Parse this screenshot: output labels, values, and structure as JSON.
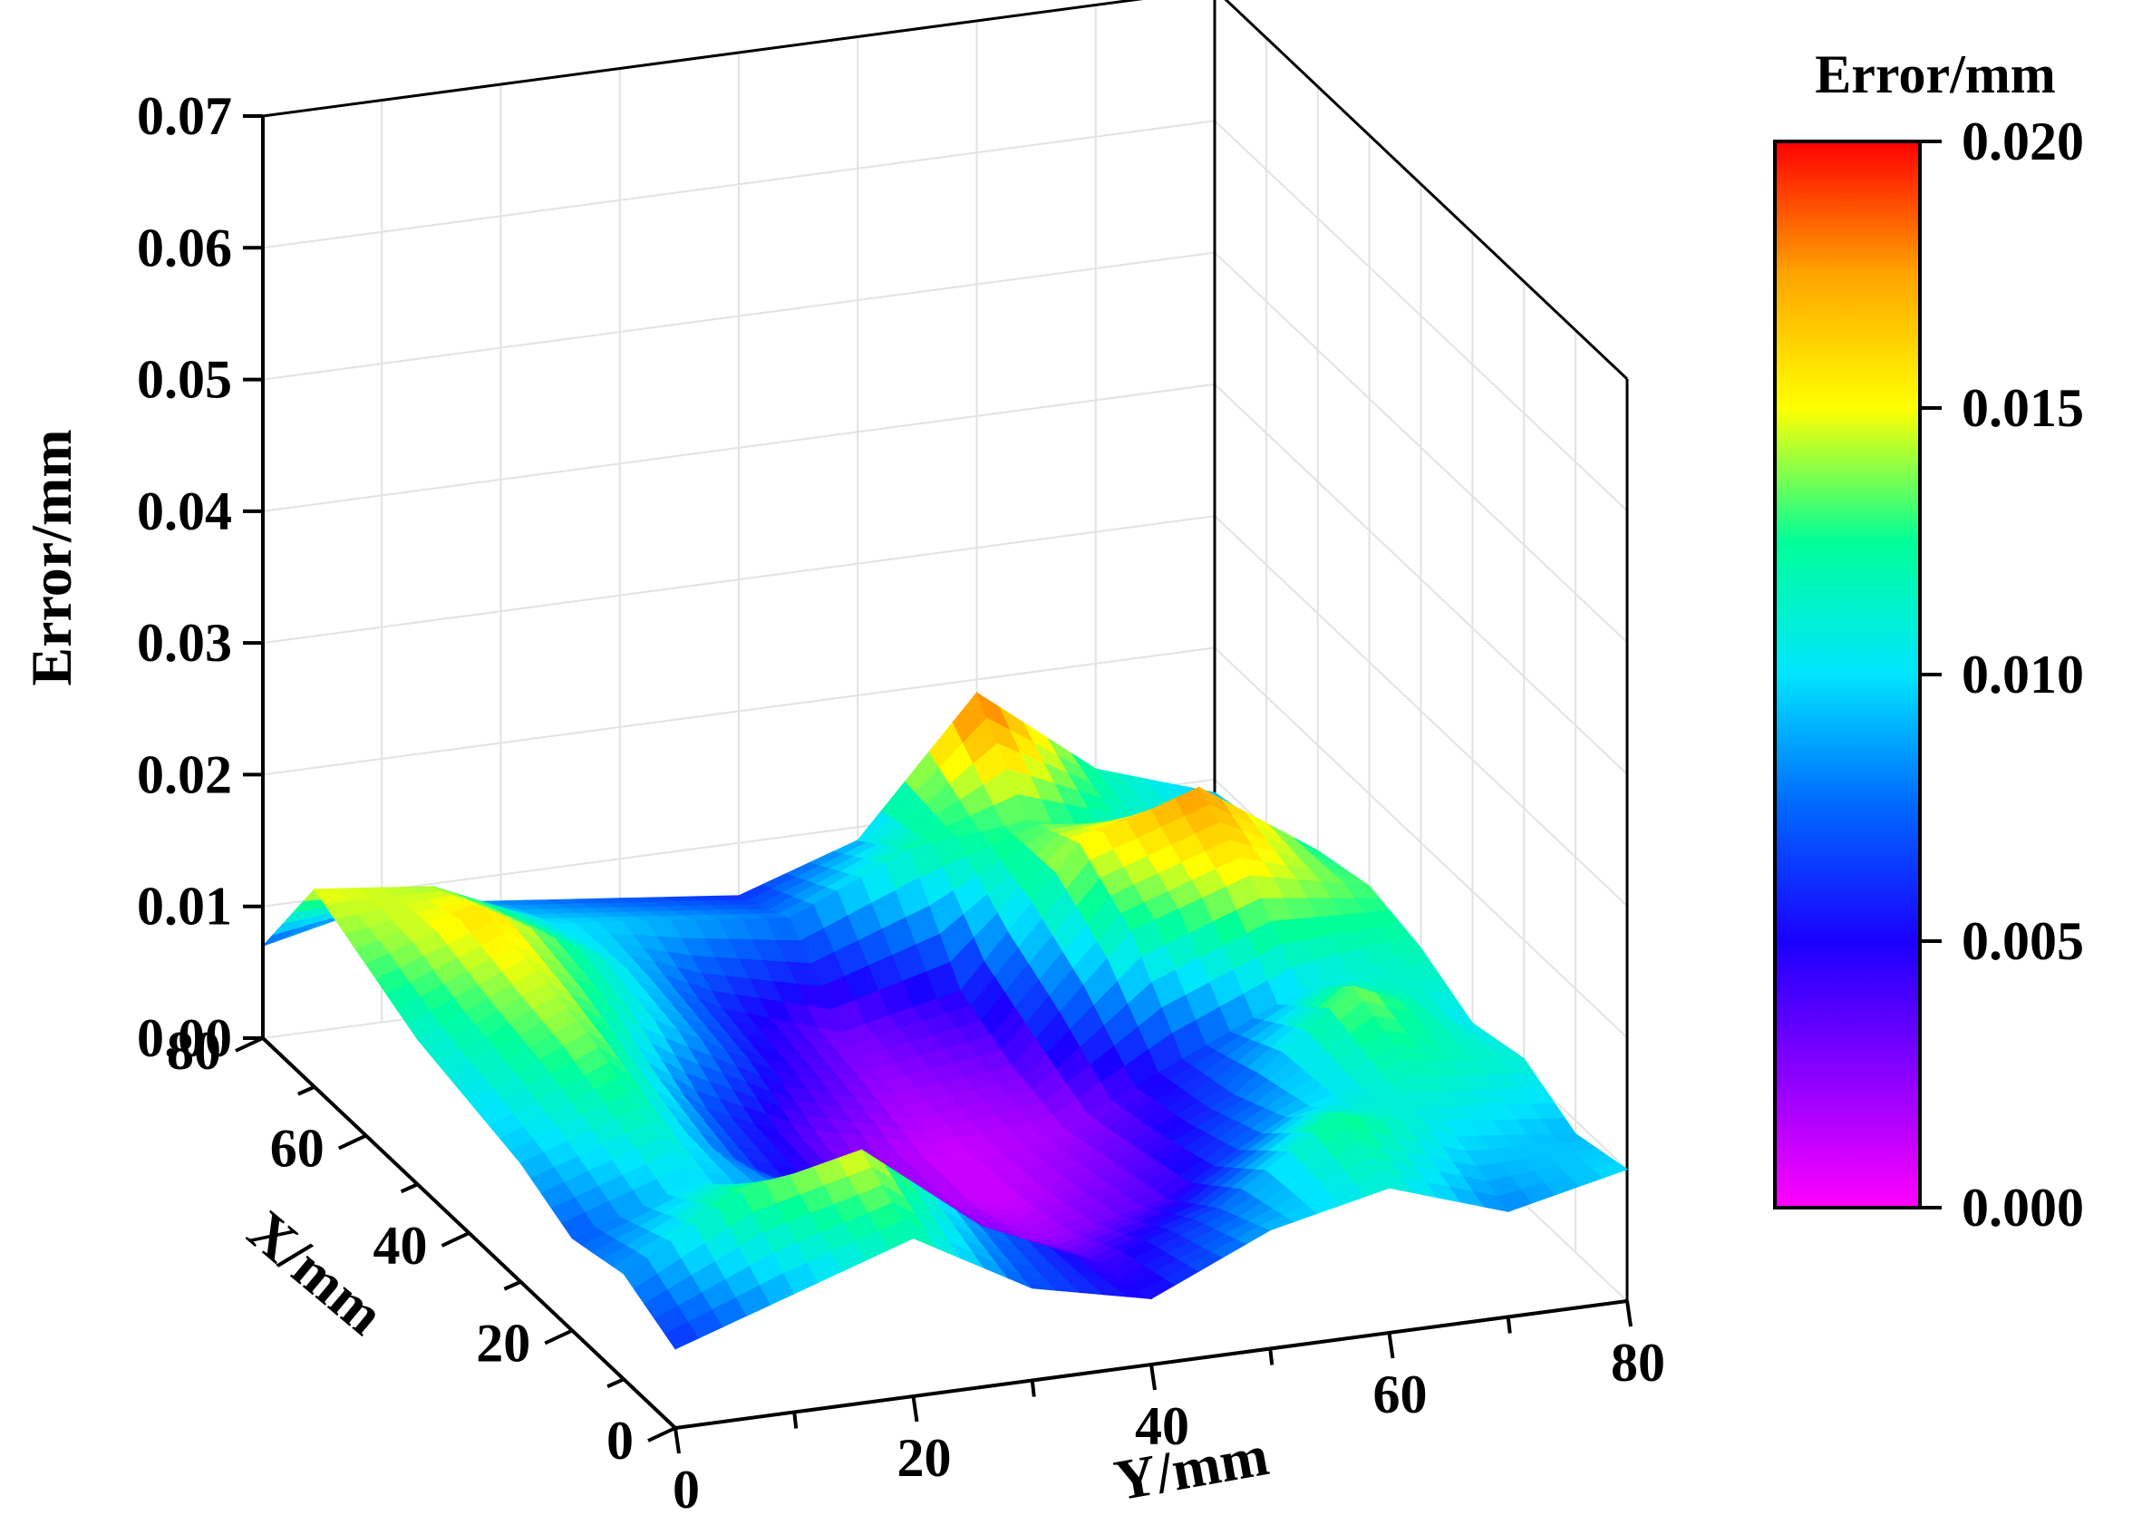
{
  "chart_data": {
    "type": "surface3d",
    "title": "",
    "zlabel": "Error/mm",
    "xlabel": "X/mm",
    "ylabel": "Y/mm",
    "xlim": [
      0,
      80
    ],
    "ylim": [
      0,
      80
    ],
    "zlim": [
      0,
      0.07
    ],
    "x_ticks": [
      "0",
      "20",
      "40",
      "60",
      "80"
    ],
    "y_ticks": [
      "0",
      "20",
      "40",
      "60",
      "80"
    ],
    "z_ticks": [
      "0.00",
      "0.01",
      "0.02",
      "0.03",
      "0.04",
      "0.05",
      "0.06",
      "0.07"
    ],
    "grid": true,
    "colorbar": {
      "title": "Error/mm",
      "range": [
        0,
        0.02
      ],
      "ticks": [
        "0.000",
        "0.005",
        "0.010",
        "0.015",
        "0.020"
      ],
      "colormap": [
        "#ff00ff",
        "#8a00ff",
        "#1a00ff",
        "#0066ff",
        "#00e5ff",
        "#00ff99",
        "#ffff00",
        "#ffa500",
        "#ff0000"
      ],
      "position": "right"
    },
    "surface_grid": {
      "x": [
        0,
        10,
        20,
        30,
        40,
        50,
        60,
        70,
        80
      ],
      "y": [
        0,
        10,
        20,
        30,
        40,
        50,
        60,
        70,
        80
      ],
      "z_rows_by_x": [
        [
          0.006,
          0.009,
          0.012,
          0.007,
          0.005,
          0.009,
          0.011,
          0.008,
          0.01
        ],
        [
          0.008,
          0.013,
          0.015,
          0.008,
          0.004,
          0.007,
          0.013,
          0.01,
          0.009
        ],
        [
          0.007,
          0.01,
          0.008,
          0.004,
          0.002,
          0.004,
          0.009,
          0.012,
          0.011
        ],
        [
          0.009,
          0.012,
          0.006,
          0.003,
          0.001,
          0.003,
          0.007,
          0.014,
          0.01
        ],
        [
          0.01,
          0.014,
          0.007,
          0.003,
          0.001,
          0.002,
          0.006,
          0.01,
          0.012
        ],
        [
          0.011,
          0.015,
          0.01,
          0.005,
          0.002,
          0.003,
          0.012,
          0.015,
          0.013
        ],
        [
          0.013,
          0.016,
          0.011,
          0.006,
          0.003,
          0.005,
          0.015,
          0.018,
          0.012
        ],
        [
          0.015,
          0.014,
          0.01,
          0.009,
          0.008,
          0.012,
          0.013,
          0.011,
          0.01
        ],
        [
          0.007,
          0.009,
          0.008,
          0.007,
          0.006,
          0.009,
          0.019,
          0.012,
          0.009
        ]
      ]
    }
  }
}
